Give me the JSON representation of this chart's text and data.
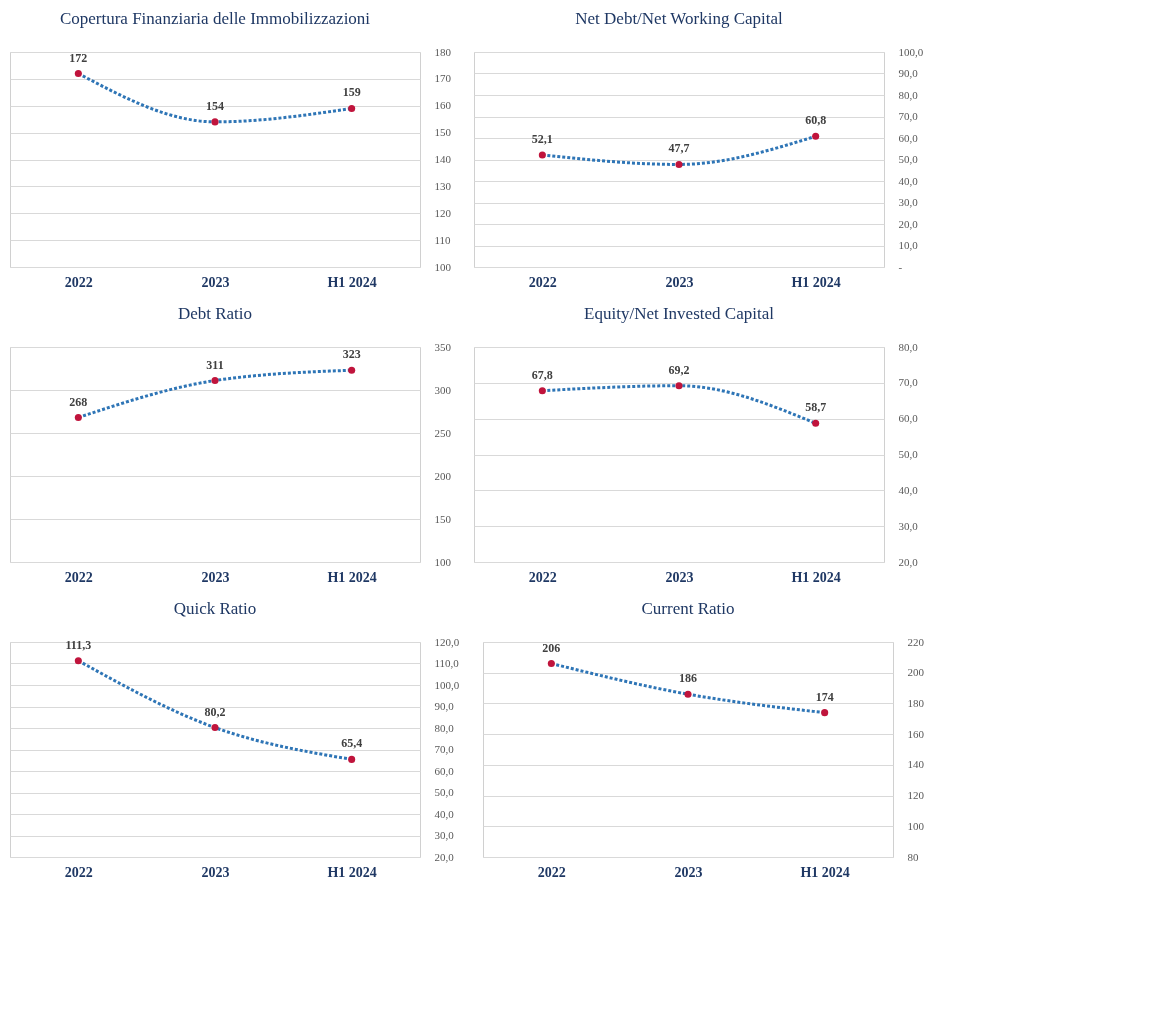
{
  "chart_data": [
    {
      "type": "line",
      "title": "Copertura Finanziaria delle Immobilizzazioni",
      "categories": [
        "2022",
        "2023",
        "H1 2024"
      ],
      "series": [
        {
          "color": "#2e75b6",
          "colors": [
            "#c0143c",
            "#c0143c",
            "#c0143c"
          ],
          "values": [
            172,
            154,
            159
          ],
          "value_labels": [
            "172",
            "154",
            "159"
          ]
        }
      ],
      "ylim": [
        100,
        180
      ],
      "yticks": [
        100,
        110,
        120,
        130,
        140,
        150,
        160,
        170,
        180
      ],
      "grid": "y",
      "marker": "circle",
      "line_style": "dotted"
    },
    {
      "type": "line",
      "title": "Net Debt/Net Working Capital",
      "categories": [
        "2022",
        "2023",
        "H1 2024"
      ],
      "series": [
        {
          "color": "#2e75b6",
          "colors": [
            "#c0143c",
            "#c0143c",
            "#c0143c"
          ],
          "values": [
            52.1,
            47.7,
            60.8
          ],
          "value_labels": [
            "52,1",
            "47,7",
            "60,8"
          ]
        }
      ],
      "ylim": [
        0,
        100
      ],
      "yticks": [
        {
          "value": 0,
          "label": "-"
        },
        {
          "value": 10,
          "label": "10,0"
        },
        {
          "value": 20,
          "label": "20,0"
        },
        {
          "value": 30,
          "label": "30,0"
        },
        {
          "value": 40,
          "label": "40,0"
        },
        {
          "value": 50,
          "label": "50,0"
        },
        {
          "value": 60,
          "label": "60,0"
        },
        {
          "value": 70,
          "label": "70,0"
        },
        {
          "value": 80,
          "label": "80,0"
        },
        {
          "value": 90,
          "label": "90,0"
        },
        {
          "value": 100,
          "label": "100,0"
        }
      ],
      "grid": "y",
      "marker": "circle",
      "line_style": "dotted"
    },
    {
      "type": "line",
      "title": "Debt Ratio",
      "categories": [
        "2022",
        "2023",
        "H1 2024"
      ],
      "series": [
        {
          "color": "#2e75b6",
          "colors": [
            "#c0143c",
            "#c0143c",
            "#c0143c"
          ],
          "values": [
            268,
            311,
            323
          ],
          "value_labels": [
            "268",
            "311",
            "323"
          ]
        }
      ],
      "ylim": [
        100,
        350
      ],
      "yticks": [
        100,
        150,
        200,
        250,
        300,
        350
      ],
      "grid": "y",
      "marker": "circle",
      "line_style": "dotted"
    },
    {
      "type": "line",
      "title": "Equity/Net Invested Capital",
      "categories": [
        "2022",
        "2023",
        "H1 2024"
      ],
      "series": [
        {
          "color": "#2e75b6",
          "colors": [
            "#c0143c",
            "#c0143c",
            "#c0143c"
          ],
          "values": [
            67.8,
            69.2,
            58.7
          ],
          "value_labels": [
            "67,8",
            "69,2",
            "58,7"
          ]
        }
      ],
      "ylim": [
        20,
        80
      ],
      "yticks": [
        {
          "value": 20,
          "label": "20,0"
        },
        {
          "value": 30,
          "label": "30,0"
        },
        {
          "value": 40,
          "label": "40,0"
        },
        {
          "value": 50,
          "label": "50,0"
        },
        {
          "value": 60,
          "label": "60,0"
        },
        {
          "value": 70,
          "label": "70,0"
        },
        {
          "value": 80,
          "label": "80,0"
        }
      ],
      "grid": "y",
      "marker": "circle",
      "line_style": "dotted"
    },
    {
      "type": "line",
      "title": "Quick Ratio",
      "categories": [
        "2022",
        "2023",
        "H1 2024"
      ],
      "series": [
        {
          "color": "#2e75b6",
          "colors": [
            "#c0143c",
            "#c0143c",
            "#c0143c"
          ],
          "values": [
            111.3,
            80.2,
            65.4
          ],
          "value_labels": [
            "111,3",
            "80,2",
            "65,4"
          ]
        }
      ],
      "ylim": [
        20,
        120
      ],
      "yticks": [
        {
          "value": 20,
          "label": "20,0"
        },
        {
          "value": 30,
          "label": "30,0"
        },
        {
          "value": 40,
          "label": "40,0"
        },
        {
          "value": 50,
          "label": "50,0"
        },
        {
          "value": 60,
          "label": "60,0"
        },
        {
          "value": 70,
          "label": "70,0"
        },
        {
          "value": 80,
          "label": "80,0"
        },
        {
          "value": 90,
          "label": "90,0"
        },
        {
          "value": 100,
          "label": "100,0"
        },
        {
          "value": 110,
          "label": "110,0"
        },
        {
          "value": 120,
          "label": "120,0"
        }
      ],
      "grid": "y",
      "marker": "circle",
      "line_style": "dotted"
    },
    {
      "type": "line",
      "title": "Current Ratio",
      "categories": [
        "2022",
        "2023",
        "H1 2024"
      ],
      "series": [
        {
          "color": "#2e75b6",
          "colors": [
            "#c0143c",
            "#c0143c",
            "#c0143c"
          ],
          "values": [
            206,
            186,
            174
          ],
          "value_labels": [
            "206",
            "186",
            "174"
          ]
        }
      ],
      "ylim": [
        80,
        220
      ],
      "yticks": [
        80,
        100,
        120,
        140,
        160,
        180,
        200,
        220
      ],
      "grid": "y",
      "marker": "circle",
      "line_style": "dotted"
    }
  ]
}
